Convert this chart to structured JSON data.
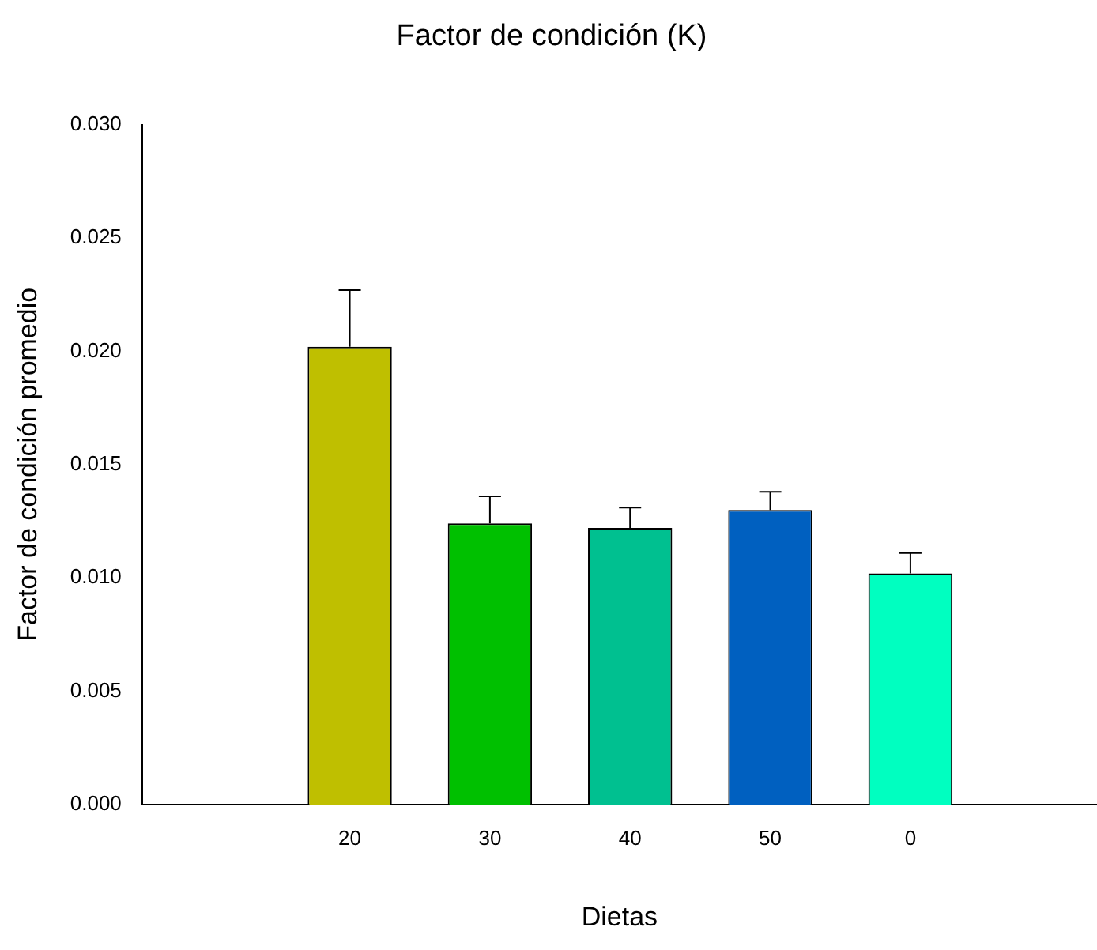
{
  "chart_data": {
    "type": "bar",
    "title": "Factor de condición (K)",
    "xlabel": "Dietas",
    "ylabel": "Factor de condición promedio",
    "categories": [
      "20",
      "30",
      "40",
      "50",
      "0"
    ],
    "values": [
      0.0202,
      0.0124,
      0.0122,
      0.013,
      0.0102
    ],
    "colors": [
      "#bfbf00",
      "#00c000",
      "#00c090",
      "#0060c0",
      "#00ffc0"
    ],
    "errors": [
      0.0025,
      0.0012,
      0.0009,
      0.0008,
      0.0009
    ],
    "ylim": [
      0,
      0.03
    ],
    "yticks": [
      {
        "value": 0,
        "label": "0.000"
      },
      {
        "value": 0.005,
        "label": "0.005"
      },
      {
        "value": 0.01,
        "label": "0.010"
      },
      {
        "value": 0.015,
        "label": "0.015"
      },
      {
        "value": 0.02,
        "label": "0.020"
      },
      {
        "value": 0.025,
        "label": "0.025"
      },
      {
        "value": 0.03,
        "label": "0.030"
      }
    ],
    "grid": false,
    "legend": false
  }
}
